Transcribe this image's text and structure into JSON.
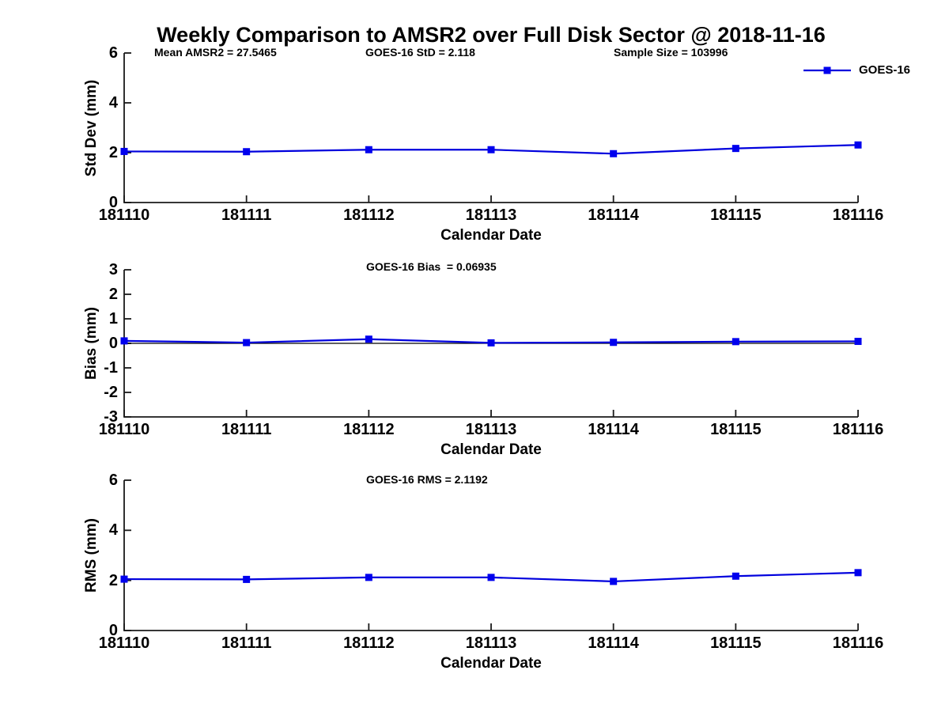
{
  "title": "Weekly Comparison to AMSR2 over Full Disk Sector @ 2018-11-16",
  "legend": {
    "label": "GOES-16",
    "position": "top-right",
    "box": "off"
  },
  "colors": {
    "line": "#0000dd",
    "marker": "#0000ee",
    "axis": "#1a1a1a",
    "zero_line": "#000000",
    "text": "#000000",
    "background": "#ffffff"
  },
  "chart_data": [
    {
      "type": "line",
      "id": "std-dev",
      "annotations": [
        "Mean AMSR2 = 27.5465",
        "GOES-16 StD = 2.118",
        "Sample Size = 103996"
      ],
      "xlabel": "Calendar Date",
      "ylabel": "Std Dev (mm)",
      "x_categories": [
        "181110",
        "181111",
        "181112",
        "181113",
        "181114",
        "181115",
        "181116"
      ],
      "ylim": [
        0,
        6
      ],
      "yticks": [
        0,
        2,
        4,
        6
      ],
      "grid": "off",
      "series": [
        {
          "name": "GOES-16",
          "values": [
            2.05,
            2.04,
            2.12,
            2.12,
            1.96,
            2.17,
            2.31
          ]
        }
      ]
    },
    {
      "type": "line",
      "id": "bias",
      "annotations": [
        "GOES-16 Bias  = 0.06935"
      ],
      "xlabel": "Calendar Date",
      "ylabel": "Bias (mm)",
      "x_categories": [
        "181110",
        "181111",
        "181112",
        "181113",
        "181114",
        "181115",
        "181116"
      ],
      "ylim": [
        -3,
        3
      ],
      "yticks": [
        -3,
        -2,
        -1,
        0,
        1,
        2,
        3
      ],
      "zero_line": true,
      "grid": "off",
      "series": [
        {
          "name": "GOES-16",
          "values": [
            0.1,
            0.03,
            0.17,
            0.02,
            0.04,
            0.07,
            0.08
          ]
        }
      ]
    },
    {
      "type": "line",
      "id": "rms",
      "annotations": [
        "GOES-16 RMS = 2.1192"
      ],
      "xlabel": "Calendar Date",
      "ylabel": "RMS (mm)",
      "x_categories": [
        "181110",
        "181111",
        "181112",
        "181113",
        "181114",
        "181115",
        "181116"
      ],
      "ylim": [
        0,
        6
      ],
      "yticks": [
        0,
        2,
        4,
        6
      ],
      "grid": "off",
      "series": [
        {
          "name": "GOES-16",
          "values": [
            2.05,
            2.04,
            2.12,
            2.12,
            1.96,
            2.17,
            2.31
          ]
        }
      ]
    }
  ]
}
